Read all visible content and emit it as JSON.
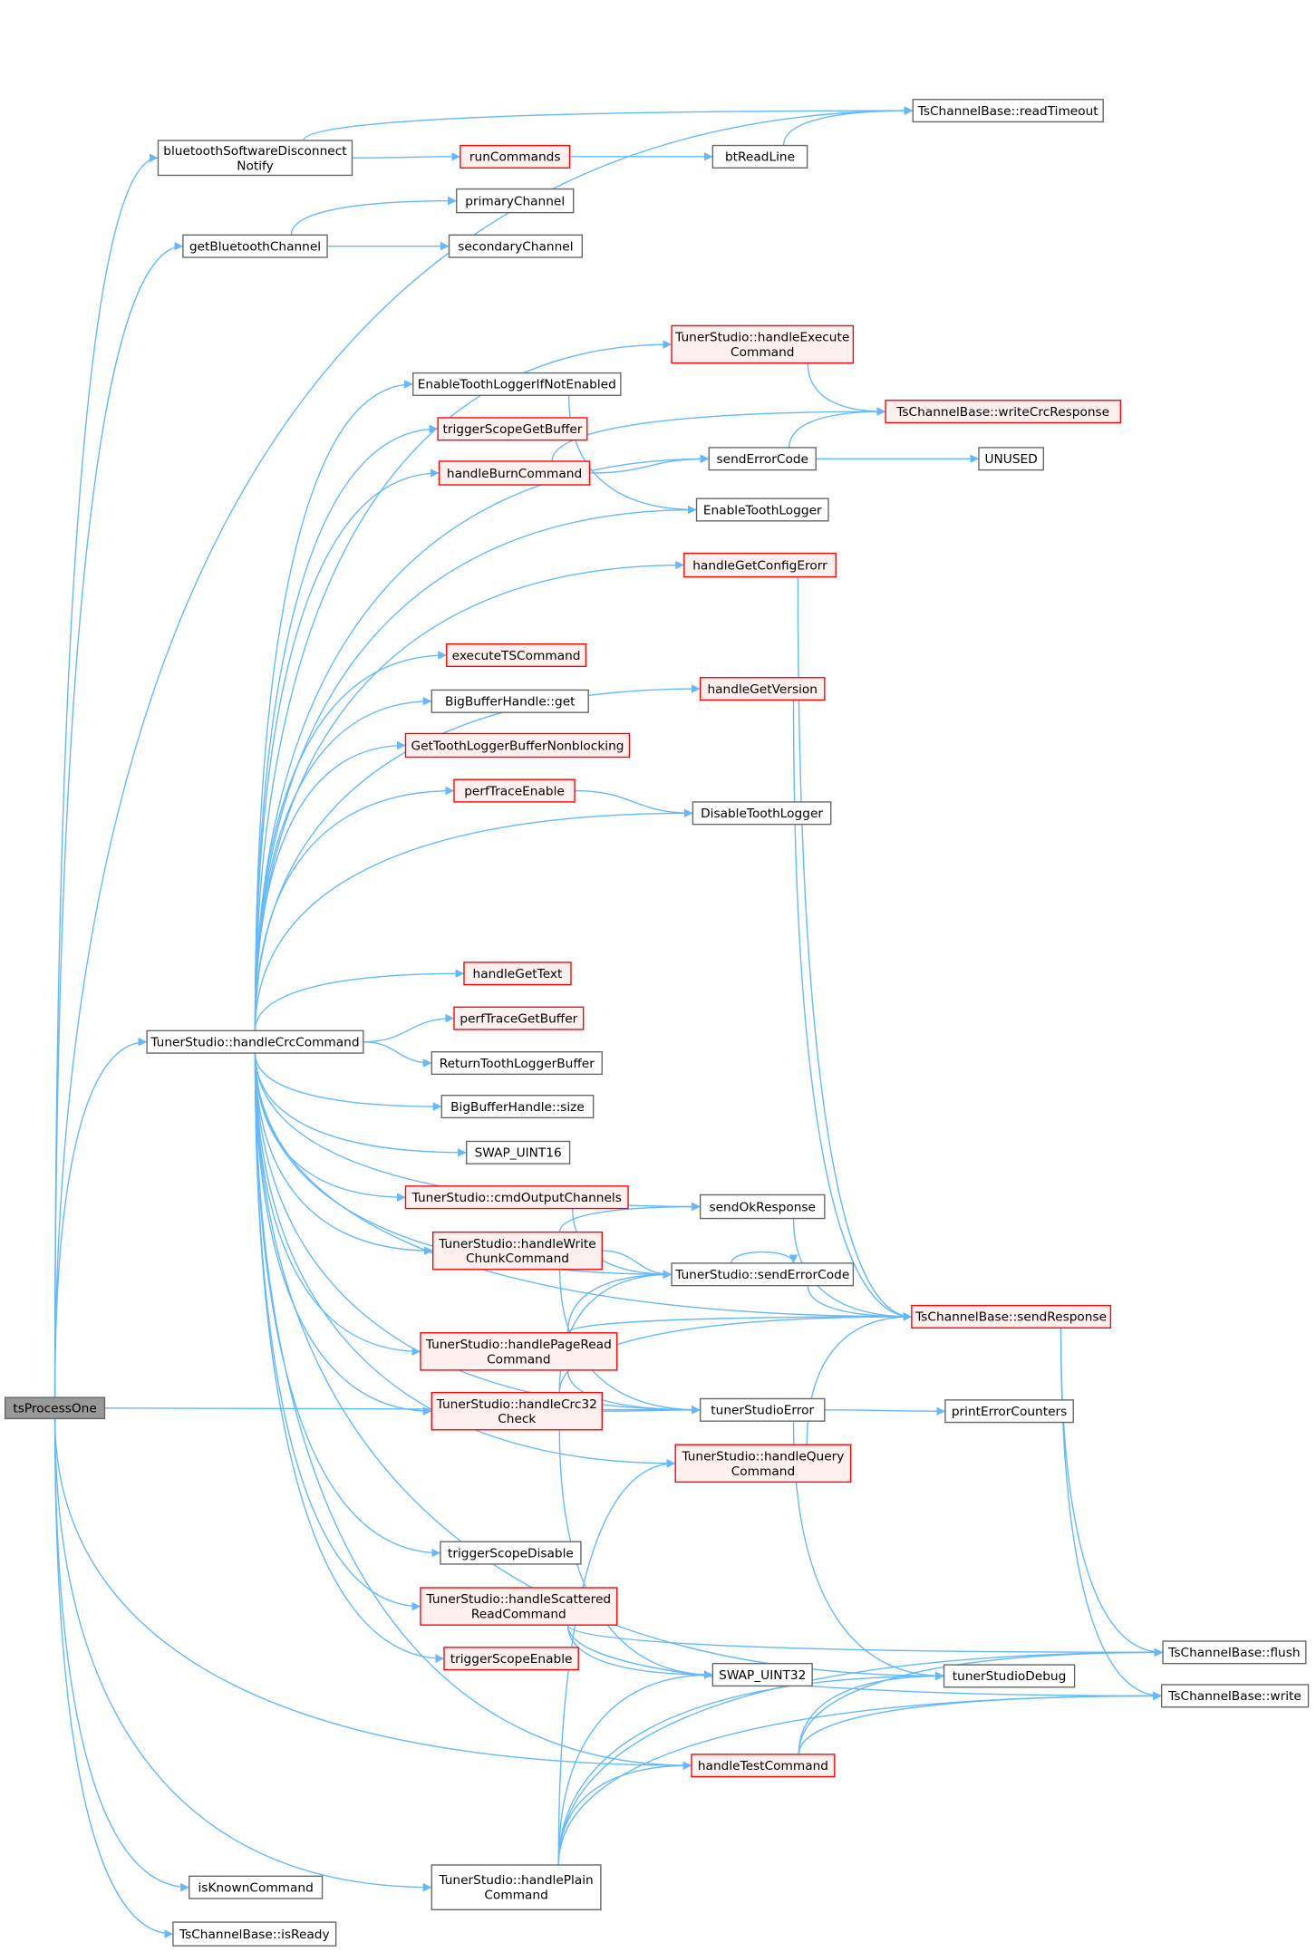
{
  "colors": {
    "edge": "#63b8ff",
    "node_border": "#666666",
    "node_fill": "#ffffff",
    "truncated_border": "#ff0000",
    "truncated_fill": "#fff0f0",
    "root_fill": "#999999"
  },
  "nodes": [
    {
      "id": "tsProcessOne",
      "lines": [
        "tsProcessOne"
      ],
      "style": "root"
    },
    {
      "id": "bluetoothSoftwareDisconnectNotify",
      "lines": [
        "bluetoothSoftwareDisconnect",
        "Notify"
      ],
      "style": "normal"
    },
    {
      "id": "getBluetoothChannel",
      "lines": [
        "getBluetoothChannel"
      ],
      "style": "normal"
    },
    {
      "id": "isKnownCommand",
      "lines": [
        "isKnownCommand"
      ],
      "style": "normal"
    },
    {
      "id": "isReady",
      "lines": [
        "TsChannelBase::isReady"
      ],
      "style": "normal"
    },
    {
      "id": "handleCrcCommand",
      "lines": [
        "TunerStudio::handleCrcCommand"
      ],
      "style": "normal"
    },
    {
      "id": "handlePlainCommand",
      "lines": [
        "TunerStudio::handlePlain",
        "Command"
      ],
      "style": "normal"
    },
    {
      "id": "runCommands",
      "lines": [
        "runCommands"
      ],
      "style": "truncated"
    },
    {
      "id": "primaryChannel",
      "lines": [
        "primaryChannel"
      ],
      "style": "normal"
    },
    {
      "id": "secondaryChannel",
      "lines": [
        "secondaryChannel"
      ],
      "style": "normal"
    },
    {
      "id": "readTimeout",
      "lines": [
        "TsChannelBase::readTimeout"
      ],
      "style": "normal"
    },
    {
      "id": "btReadLine",
      "lines": [
        "btReadLine"
      ],
      "style": "normal"
    },
    {
      "id": "handleExecuteCommand",
      "lines": [
        "TunerStudio::handleExecute",
        "Command"
      ],
      "style": "truncated"
    },
    {
      "id": "EnableToothLoggerIfNotEnabled",
      "lines": [
        "EnableToothLoggerIfNotEnabled"
      ],
      "style": "normal"
    },
    {
      "id": "triggerScopeGetBuffer",
      "lines": [
        "triggerScopeGetBuffer"
      ],
      "style": "truncated"
    },
    {
      "id": "handleBurnCommand",
      "lines": [
        "handleBurnCommand"
      ],
      "style": "truncated"
    },
    {
      "id": "writeCrcResponse",
      "lines": [
        "TsChannelBase::writeCrcResponse"
      ],
      "style": "truncated"
    },
    {
      "id": "sendErrorCode",
      "lines": [
        "sendErrorCode"
      ],
      "style": "normal"
    },
    {
      "id": "UNUSED",
      "lines": [
        "UNUSED"
      ],
      "style": "normal"
    },
    {
      "id": "EnableToothLogger",
      "lines": [
        "EnableToothLogger"
      ],
      "style": "normal"
    },
    {
      "id": "handleGetConfigErorr",
      "lines": [
        "handleGetConfigErorr"
      ],
      "style": "truncated"
    },
    {
      "id": "executeTSCommand",
      "lines": [
        "executeTSCommand"
      ],
      "style": "truncated"
    },
    {
      "id": "handleGetVersion",
      "lines": [
        "handleGetVersion"
      ],
      "style": "truncated"
    },
    {
      "id": "BigBufferGet",
      "lines": [
        "BigBufferHandle::get"
      ],
      "style": "normal"
    },
    {
      "id": "GetToothLoggerBufferNonblocking",
      "lines": [
        "GetToothLoggerBufferNonblocking"
      ],
      "style": "truncated"
    },
    {
      "id": "perfTraceEnable",
      "lines": [
        "perfTraceEnable"
      ],
      "style": "truncated"
    },
    {
      "id": "DisableToothLogger",
      "lines": [
        "DisableToothLogger"
      ],
      "style": "normal"
    },
    {
      "id": "handleGetText",
      "lines": [
        "handleGetText"
      ],
      "style": "truncated"
    },
    {
      "id": "perfTraceGetBuffer",
      "lines": [
        "perfTraceGetBuffer"
      ],
      "style": "truncated"
    },
    {
      "id": "ReturnToothLoggerBuffer",
      "lines": [
        "ReturnToothLoggerBuffer"
      ],
      "style": "normal"
    },
    {
      "id": "BigBufferSize",
      "lines": [
        "BigBufferHandle::size"
      ],
      "style": "normal"
    },
    {
      "id": "SWAP_UINT16",
      "lines": [
        "SWAP_UINT16"
      ],
      "style": "normal"
    },
    {
      "id": "cmdOutputChannels",
      "lines": [
        "TunerStudio::cmdOutputChannels"
      ],
      "style": "truncated"
    },
    {
      "id": "sendOkResponse",
      "lines": [
        "sendOkResponse"
      ],
      "style": "normal"
    },
    {
      "id": "handleWriteChunkCommand",
      "lines": [
        "TunerStudio::handleWrite",
        "ChunkCommand"
      ],
      "style": "truncated"
    },
    {
      "id": "TSsendErrorCode",
      "lines": [
        "TunerStudio::sendErrorCode"
      ],
      "style": "normal"
    },
    {
      "id": "sendResponse",
      "lines": [
        "TsChannelBase::sendResponse"
      ],
      "style": "truncated"
    },
    {
      "id": "handlePageReadCommand",
      "lines": [
        "TunerStudio::handlePageRead",
        "Command"
      ],
      "style": "truncated"
    },
    {
      "id": "handleCrc32Check",
      "lines": [
        "TunerStudio::handleCrc32",
        "Check"
      ],
      "style": "truncated"
    },
    {
      "id": "tunerStudioError",
      "lines": [
        "tunerStudioError"
      ],
      "style": "normal"
    },
    {
      "id": "printErrorCounters",
      "lines": [
        "printErrorCounters"
      ],
      "style": "normal"
    },
    {
      "id": "handleQueryCommand",
      "lines": [
        "TunerStudio::handleQuery",
        "Command"
      ],
      "style": "truncated"
    },
    {
      "id": "triggerScopeDisable",
      "lines": [
        "triggerScopeDisable"
      ],
      "style": "normal"
    },
    {
      "id": "handleScatteredReadCommand",
      "lines": [
        "TunerStudio::handleScattered",
        "ReadCommand"
      ],
      "style": "truncated"
    },
    {
      "id": "triggerScopeEnable",
      "lines": [
        "triggerScopeEnable"
      ],
      "style": "truncated"
    },
    {
      "id": "SWAP_UINT32",
      "lines": [
        "SWAP_UINT32"
      ],
      "style": "normal"
    },
    {
      "id": "tunerStudioDebug",
      "lines": [
        "tunerStudioDebug"
      ],
      "style": "normal"
    },
    {
      "id": "handleTestCommand",
      "lines": [
        "handleTestCommand"
      ],
      "style": "truncated"
    },
    {
      "id": "flush",
      "lines": [
        "TsChannelBase::flush"
      ],
      "style": "normal"
    },
    {
      "id": "write",
      "lines": [
        "TsChannelBase::write"
      ],
      "style": "normal"
    }
  ],
  "edges": [
    [
      "tsProcessOne",
      "readTimeout"
    ],
    [
      "tsProcessOne",
      "bluetoothSoftwareDisconnectNotify"
    ],
    [
      "tsProcessOne",
      "getBluetoothChannel"
    ],
    [
      "tsProcessOne",
      "handleCrcCommand"
    ],
    [
      "tsProcessOne",
      "tunerStudioError"
    ],
    [
      "tsProcessOne",
      "handleTestCommand"
    ],
    [
      "tsProcessOne",
      "isKnownCommand"
    ],
    [
      "tsProcessOne",
      "isReady"
    ],
    [
      "tsProcessOne",
      "handlePlainCommand"
    ],
    [
      "bluetoothSoftwareDisconnectNotify",
      "readTimeout"
    ],
    [
      "bluetoothSoftwareDisconnectNotify",
      "runCommands"
    ],
    [
      "runCommands",
      "btReadLine"
    ],
    [
      "btReadLine",
      "readTimeout"
    ],
    [
      "getBluetoothChannel",
      "primaryChannel"
    ],
    [
      "getBluetoothChannel",
      "secondaryChannel"
    ],
    [
      "handleCrcCommand",
      "handleExecuteCommand"
    ],
    [
      "handleCrcCommand",
      "sendErrorCode"
    ],
    [
      "handleCrcCommand",
      "EnableToothLoggerIfNotEnabled"
    ],
    [
      "handleCrcCommand",
      "triggerScopeGetBuffer"
    ],
    [
      "handleCrcCommand",
      "handleBurnCommand"
    ],
    [
      "handleCrcCommand",
      "EnableToothLogger"
    ],
    [
      "handleCrcCommand",
      "handleGetConfigErorr"
    ],
    [
      "handleCrcCommand",
      "handleGetVersion"
    ],
    [
      "handleCrcCommand",
      "executeTSCommand"
    ],
    [
      "handleCrcCommand",
      "BigBufferGet"
    ],
    [
      "handleCrcCommand",
      "GetToothLoggerBufferNonblocking"
    ],
    [
      "handleCrcCommand",
      "perfTraceEnable"
    ],
    [
      "handleCrcCommand",
      "DisableToothLogger"
    ],
    [
      "handleCrcCommand",
      "sendResponse"
    ],
    [
      "handleCrcCommand",
      "sendOkResponse"
    ],
    [
      "handleCrcCommand",
      "handleGetText"
    ],
    [
      "handleCrcCommand",
      "perfTraceGetBuffer"
    ],
    [
      "handleCrcCommand",
      "ReturnToothLoggerBuffer"
    ],
    [
      "handleCrcCommand",
      "BigBufferSize"
    ],
    [
      "handleCrcCommand",
      "SWAP_UINT16"
    ],
    [
      "handleCrcCommand",
      "cmdOutputChannels"
    ],
    [
      "handleCrcCommand",
      "handleWriteChunkCommand"
    ],
    [
      "handleCrcCommand",
      "TSsendErrorCode"
    ],
    [
      "handleCrcCommand",
      "handlePageReadCommand"
    ],
    [
      "handleCrcCommand",
      "handleCrc32Check"
    ],
    [
      "handleCrcCommand",
      "handleQueryCommand"
    ],
    [
      "handleCrcCommand",
      "triggerScopeDisable"
    ],
    [
      "handleCrcCommand",
      "handleScatteredReadCommand"
    ],
    [
      "handleCrcCommand",
      "triggerScopeEnable"
    ],
    [
      "handleCrcCommand",
      "tunerStudioDebug"
    ],
    [
      "handleCrcCommand",
      "tunerStudioError"
    ],
    [
      "handleCrcCommand",
      "handleTestCommand"
    ],
    [
      "handleExecuteCommand",
      "writeCrcResponse"
    ],
    [
      "EnableToothLoggerIfNotEnabled",
      "EnableToothLogger"
    ],
    [
      "handleBurnCommand",
      "writeCrcResponse"
    ],
    [
      "handleBurnCommand",
      "sendErrorCode"
    ],
    [
      "sendErrorCode",
      "writeCrcResponse"
    ],
    [
      "sendErrorCode",
      "UNUSED"
    ],
    [
      "handleGetConfigErorr",
      "sendResponse"
    ],
    [
      "handleGetVersion",
      "sendResponse"
    ],
    [
      "perfTraceEnable",
      "DisableToothLogger"
    ],
    [
      "cmdOutputChannels",
      "TSsendErrorCode"
    ],
    [
      "handleWriteChunkCommand",
      "sendOkResponse"
    ],
    [
      "handleWriteChunkCommand",
      "TSsendErrorCode"
    ],
    [
      "handleWriteChunkCommand",
      "tunerStudioError"
    ],
    [
      "sendOkResponse",
      "sendResponse"
    ],
    [
      "TSsendErrorCode",
      "TSsendErrorCode"
    ],
    [
      "TSsendErrorCode",
      "sendResponse"
    ],
    [
      "handlePageReadCommand",
      "TSsendErrorCode"
    ],
    [
      "handlePageReadCommand",
      "sendResponse"
    ],
    [
      "handlePageReadCommand",
      "tunerStudioError"
    ],
    [
      "handleCrc32Check",
      "TSsendErrorCode"
    ],
    [
      "handleCrc32Check",
      "sendResponse"
    ],
    [
      "handleCrc32Check",
      "tunerStudioError"
    ],
    [
      "handleCrc32Check",
      "SWAP_UINT32"
    ],
    [
      "tunerStudioError",
      "printErrorCounters"
    ],
    [
      "tunerStudioError",
      "tunerStudioDebug"
    ],
    [
      "handleQueryCommand",
      "sendResponse"
    ],
    [
      "sendResponse",
      "flush"
    ],
    [
      "sendResponse",
      "write"
    ],
    [
      "handleScatteredReadCommand",
      "flush"
    ],
    [
      "handleScatteredReadCommand",
      "write"
    ],
    [
      "handleScatteredReadCommand",
      "SWAP_UINT32"
    ],
    [
      "handleTestCommand",
      "tunerStudioDebug"
    ],
    [
      "handleTestCommand",
      "flush"
    ],
    [
      "handleTestCommand",
      "write"
    ],
    [
      "handlePlainCommand",
      "handleQueryCommand"
    ],
    [
      "handlePlainCommand",
      "SWAP_UINT32"
    ],
    [
      "handlePlainCommand",
      "handleTestCommand"
    ],
    [
      "handlePlainCommand",
      "tunerStudioDebug"
    ],
    [
      "handlePlainCommand",
      "flush"
    ],
    [
      "handlePlainCommand",
      "write"
    ]
  ]
}
